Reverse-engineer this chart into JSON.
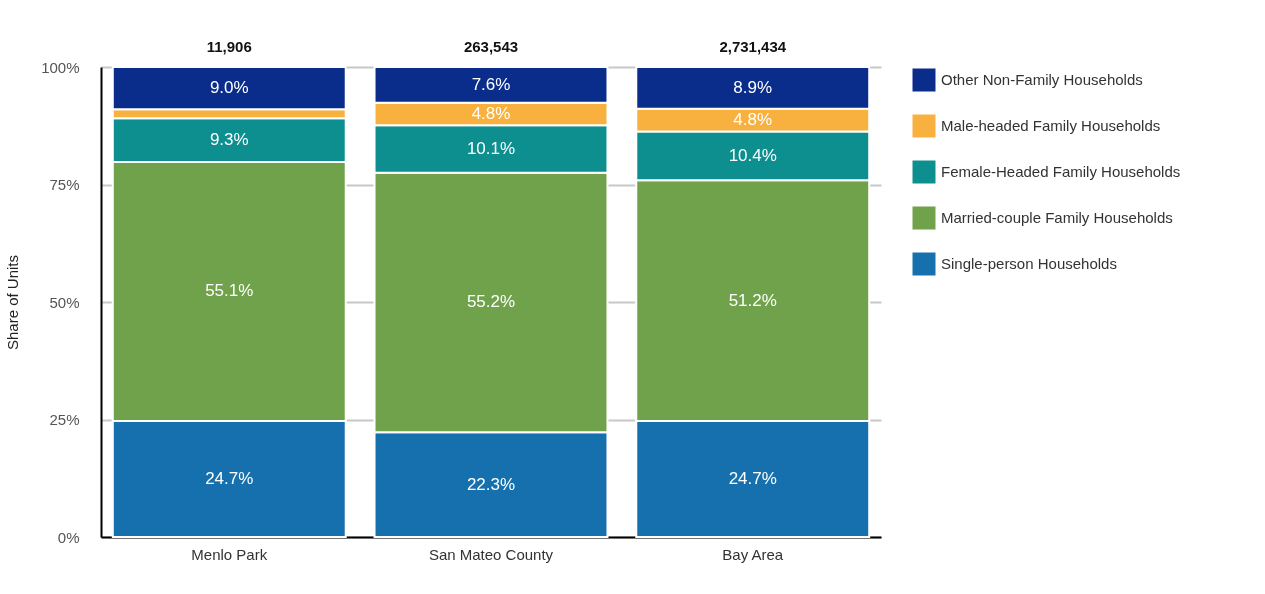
{
  "chart_data": {
    "type": "bar",
    "stacked": true,
    "ylabel": "Share of Units",
    "categories": [
      "Menlo Park",
      "San Mateo County",
      "Bay Area"
    ],
    "series": [
      {
        "name": "Single-person Households",
        "color": "#1670ad",
        "values": [
          24.7,
          22.3,
          24.7
        ],
        "value_labels": [
          "24.7%",
          "22.3%",
          "24.7%"
        ]
      },
      {
        "name": "Married-couple Family Households",
        "color": "#6fa24a",
        "values": [
          55.1,
          55.2,
          51.2
        ],
        "value_labels": [
          "55.1%",
          "55.2%",
          "51.2%"
        ]
      },
      {
        "name": "Female-Headed Family Households",
        "color": "#0e8f8f",
        "values": [
          9.3,
          10.1,
          10.4
        ],
        "value_labels": [
          "9.3%",
          "10.1%",
          "10.4%"
        ]
      },
      {
        "name": "Male-headed Family Households",
        "color": "#f8b13e",
        "values": [
          1.9,
          4.8,
          4.8
        ],
        "value_labels": [
          null,
          "4.8%",
          "4.8%"
        ]
      },
      {
        "name": "Other Non-Family Households",
        "color": "#0a2d8c",
        "values": [
          9.0,
          7.6,
          8.9
        ],
        "value_labels": [
          "9.0%",
          "7.6%",
          "8.9%"
        ]
      }
    ],
    "annotations": [
      {
        "text": "11,906",
        "x": "Menlo Park",
        "y": 100
      },
      {
        "text": "263,543",
        "x": "San Mateo County",
        "y": 100
      },
      {
        "text": "2,731,434",
        "x": "Bay Area",
        "y": 100
      }
    ],
    "ylim": [
      0,
      100
    ],
    "yticks": [
      {
        "value": 0,
        "label": "0%"
      },
      {
        "value": 25,
        "label": "25%"
      },
      {
        "value": 50,
        "label": "50%"
      },
      {
        "value": 75,
        "label": "75%"
      },
      {
        "value": 100,
        "label": "100%"
      }
    ],
    "grid": "y",
    "legend": "right"
  }
}
